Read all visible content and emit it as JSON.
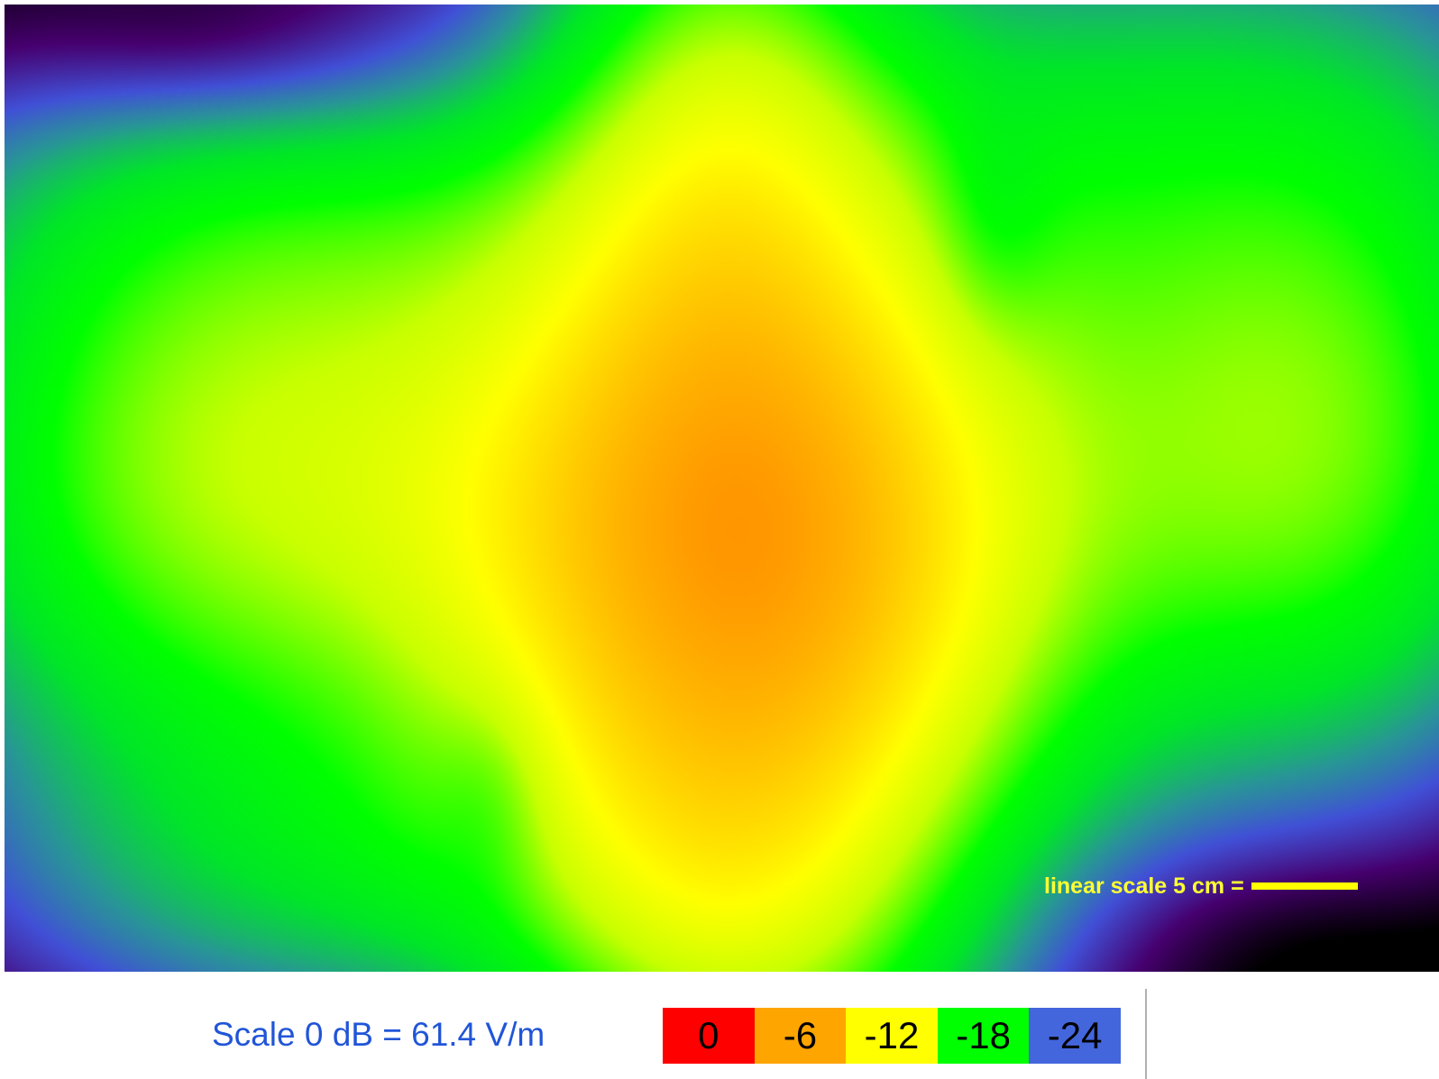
{
  "chart_data": {
    "type": "heatmap",
    "title": "",
    "xlabel": "",
    "ylabel": "",
    "colorscale": [
      {
        "label": "0",
        "value": 0,
        "color": "#ff0000"
      },
      {
        "label": "-6",
        "value": -6,
        "color": "#ffa500"
      },
      {
        "label": "-12",
        "value": -12,
        "color": "#ffff00"
      },
      {
        "label": "-18",
        "value": -18,
        "color": "#00ff00"
      },
      {
        "label": "-24",
        "value": -24,
        "color": "#4466dd"
      }
    ],
    "extra_colors": {
      "below_-24_deep": "#4a0070",
      "minimum": "#000000"
    },
    "scale_caption": "Scale 0 dB = 61.4 V/m",
    "linear_scale_label": "linear scale 5 cm =",
    "linear_scale_color": "#ffff00"
  }
}
